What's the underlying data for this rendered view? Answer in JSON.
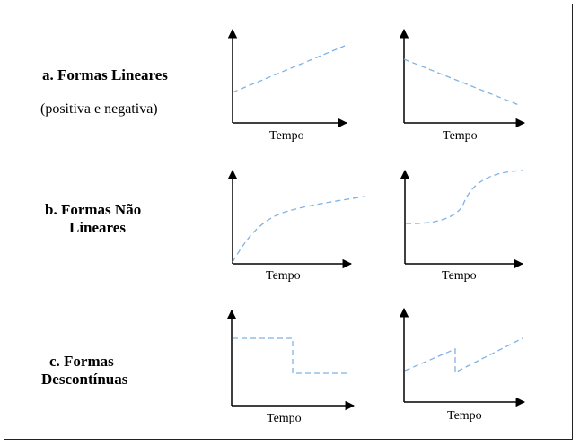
{
  "rows": [
    {
      "title": "a. Formas Lineares",
      "subtitle": "(positiva e negativa)",
      "graphs": [
        {
          "xlabel": "Tempo",
          "shape": "linear-positive"
        },
        {
          "xlabel": "Tempo",
          "shape": "linear-negative"
        }
      ]
    },
    {
      "title_line1": "b. Formas Não",
      "title_line2": "Lineares",
      "graphs": [
        {
          "xlabel": "Tempo",
          "shape": "concave-increasing"
        },
        {
          "xlabel": "Tempo",
          "shape": "s-curve"
        }
      ]
    },
    {
      "title_line1": "c. Formas",
      "title_line2": "Descontínuas",
      "graphs": [
        {
          "xlabel": "Tempo",
          "shape": "step-down"
        },
        {
          "xlabel": "Tempo",
          "shape": "jump-increasing"
        }
      ]
    }
  ],
  "colors": {
    "curve": "#7fb2e5",
    "axis": "#000000",
    "border": "#222222"
  }
}
